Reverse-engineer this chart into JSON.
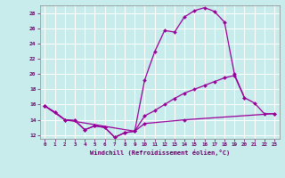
{
  "xlabel": "Windchill (Refroidissement éolien,°C)",
  "background_color": "#c8ecec",
  "line_color": "#990099",
  "grid_color": "#b0d0d0",
  "xmin": -0.5,
  "xmax": 23.5,
  "ymin": 11.5,
  "ymax": 29.0,
  "yticks": [
    12,
    14,
    16,
    18,
    20,
    22,
    24,
    26,
    28
  ],
  "xticks": [
    0,
    1,
    2,
    3,
    4,
    5,
    6,
    7,
    8,
    9,
    10,
    11,
    12,
    13,
    14,
    15,
    16,
    17,
    18,
    19,
    20,
    21,
    22,
    23
  ],
  "line1_x": [
    0,
    1,
    2,
    3,
    4,
    5,
    6,
    7,
    8,
    9,
    10,
    11,
    12,
    13,
    14,
    15,
    16,
    17,
    18,
    19,
    20
  ],
  "line1_y": [
    15.8,
    15.0,
    14.0,
    13.9,
    12.7,
    13.2,
    13.0,
    11.7,
    12.3,
    12.5,
    19.2,
    22.9,
    25.7,
    25.5,
    27.5,
    28.3,
    28.7,
    28.2,
    26.8,
    20.0,
    16.9
  ],
  "line2_x": [
    0,
    1,
    2,
    3,
    4,
    5,
    6,
    7,
    8,
    9,
    10,
    11,
    12,
    13,
    14,
    15,
    16,
    17,
    18,
    19,
    20,
    21,
    22,
    23
  ],
  "line2_y": [
    15.8,
    15.0,
    14.0,
    13.9,
    12.7,
    13.2,
    13.0,
    11.7,
    12.3,
    12.5,
    14.5,
    15.2,
    16.0,
    16.8,
    17.5,
    18.0,
    18.5,
    19.0,
    19.5,
    19.8,
    16.9,
    16.2,
    14.8,
    14.8
  ],
  "line3_x": [
    0,
    2,
    9,
    10,
    14,
    23
  ],
  "line3_y": [
    15.8,
    14.0,
    12.5,
    13.5,
    14.0,
    14.8
  ],
  "marker_size": 2,
  "linewidth": 0.9
}
